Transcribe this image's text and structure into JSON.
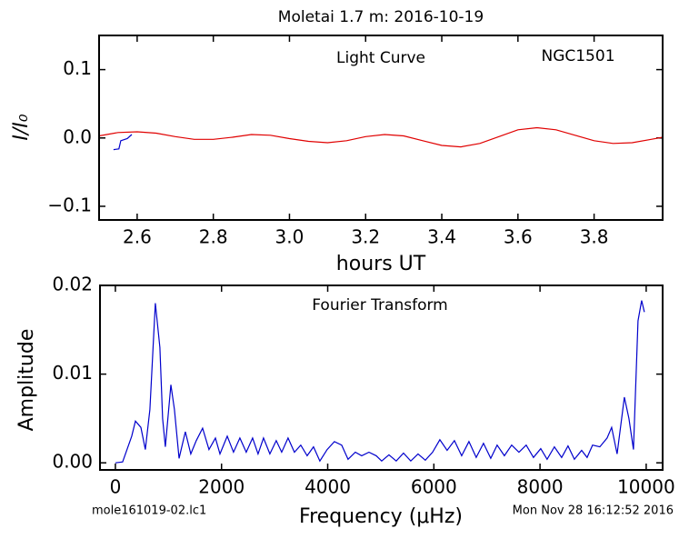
{
  "chart_data": [
    {
      "type": "line",
      "title": "Moletai 1.7 m:  2016-10-19",
      "annotations": [
        "Light Curve",
        "NGC1501"
      ],
      "x_label": "hours UT",
      "y_label": "I/I₀",
      "xlim": [
        2.5,
        3.98
      ],
      "ylim": [
        -0.12,
        0.15
      ],
      "xticks": [
        2.6,
        2.8,
        {
          "value": 3.0,
          "label": "3.0"
        },
        3.2,
        3.4,
        3.6,
        3.8
      ],
      "yticks": [
        {
          "value": -0.1,
          "label": "−0.1"
        },
        {
          "value": 0,
          "label": "0.0"
        },
        0.1
      ],
      "series": [
        {
          "color": "#e00000",
          "x": [
            2.5,
            2.55,
            2.6,
            2.65,
            2.7,
            2.75,
            2.8,
            2.85,
            2.9,
            2.95,
            3.0,
            3.05,
            3.1,
            3.15,
            3.2,
            3.25,
            3.3,
            3.35,
            3.4,
            3.45,
            3.5,
            3.55,
            3.6,
            3.65,
            3.7,
            3.75,
            3.8,
            3.85,
            3.9,
            3.95,
            3.98
          ],
          "values": [
            0.003,
            0.008,
            0.009,
            0.007,
            0.002,
            -0.002,
            -0.002,
            0.001,
            0.005,
            0.004,
            -0.001,
            -0.005,
            -0.007,
            -0.004,
            0.002,
            0.005,
            0.003,
            -0.004,
            -0.011,
            -0.013,
            -0.008,
            0.002,
            0.012,
            0.015,
            0.012,
            0.004,
            -0.004,
            -0.008,
            -0.007,
            -0.002,
            0.001
          ]
        },
        {
          "color": "#0000cc",
          "x": [
            2.538,
            2.552,
            2.557,
            2.574,
            2.586
          ],
          "values": [
            -0.017,
            -0.016,
            -0.004,
            -0.001,
            0.005
          ]
        }
      ]
    },
    {
      "type": "line",
      "annotations": [
        "Fourier Transform"
      ],
      "x_label": "Frequency (μHz)",
      "y_label": "Amplitude",
      "xlim": [
        -290,
        10310
      ],
      "ylim": [
        -0.0008,
        0.02
      ],
      "xticks": [
        0,
        2000,
        4000,
        6000,
        8000,
        10000
      ],
      "yticks": [
        {
          "value": 0,
          "label": "0.00"
        },
        0.01,
        0.02
      ],
      "series": [
        {
          "color": "#0000cc",
          "x": [
            0,
            137,
            308,
            377,
            480,
            565,
            650,
            753,
            839,
            890,
            942,
            1045,
            1113,
            1199,
            1318,
            1421,
            1524,
            1644,
            1764,
            1884,
            1970,
            2107,
            2226,
            2346,
            2466,
            2586,
            2688,
            2791,
            2911,
            3031,
            3134,
            3253,
            3373,
            3493,
            3613,
            3733,
            3853,
            3990,
            4127,
            4264,
            4384,
            4521,
            4640,
            4777,
            4914,
            5017,
            5154,
            5291,
            5428,
            5565,
            5702,
            5839,
            5976,
            6113,
            6250,
            6387,
            6524,
            6661,
            6798,
            6935,
            7072,
            7192,
            7329,
            7466,
            7603,
            7740,
            7877,
            8014,
            8134,
            8271,
            8408,
            8527,
            8647,
            8784,
            8887,
            8990,
            9127,
            9264,
            9349,
            9452,
            9589,
            9675,
            9760,
            9846,
            9914,
            9966
          ],
          "values": [
            0,
            0.0001,
            0.003,
            0.0047,
            0.004,
            0.0015,
            0.006,
            0.018,
            0.013,
            0.005,
            0.0018,
            0.0088,
            0.006,
            0.0005,
            0.0035,
            0.001,
            0.0025,
            0.0039,
            0.0015,
            0.0028,
            0.001,
            0.003,
            0.0012,
            0.0028,
            0.0012,
            0.0028,
            0.001,
            0.0028,
            0.001,
            0.0025,
            0.0012,
            0.0028,
            0.0012,
            0.002,
            0.0008,
            0.0018,
            0.0002,
            0.0015,
            0.0024,
            0.002,
            0.0004,
            0.0012,
            0.0008,
            0.0012,
            0.0008,
            0.0002,
            0.0009,
            0.0002,
            0.0011,
            0.0002,
            0.001,
            0.0003,
            0.0012,
            0.0026,
            0.0014,
            0.0025,
            0.0008,
            0.0024,
            0.0006,
            0.0022,
            0.0005,
            0.002,
            0.0008,
            0.002,
            0.0012,
            0.002,
            0.0006,
            0.0016,
            0.0004,
            0.0018,
            0.0006,
            0.0019,
            0.0004,
            0.0014,
            0.0006,
            0.002,
            0.0018,
            0.0028,
            0.004,
            0.001,
            0.0074,
            0.005,
            0.0015,
            0.016,
            0.0183,
            0.017
          ]
        }
      ]
    }
  ],
  "footer": {
    "left": "mole161019-02.lc1",
    "right": "Mon Nov 28 16:12:52 2016"
  }
}
